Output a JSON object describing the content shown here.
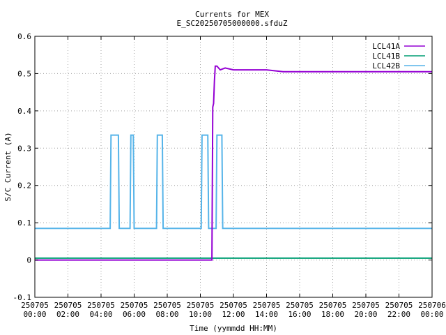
{
  "chart_data": {
    "type": "line",
    "title": "Currents for MEX",
    "subtitle": "E_SC20250705000000.sfduZ",
    "xlabel": "Time (yymmdd HH:MM)",
    "ylabel": "S/C Current (A)",
    "xlim": [
      0,
      24
    ],
    "ylim": [
      -0.1,
      0.6
    ],
    "grid": true,
    "legend_position": "top-right",
    "x_ticks": [
      0,
      2,
      4,
      6,
      8,
      10,
      12,
      14,
      16,
      18,
      20,
      22,
      24
    ],
    "x_tick_labels_top": [
      "250705",
      "250705",
      "250705",
      "250705",
      "250705",
      "250705",
      "250705",
      "250705",
      "250705",
      "250705",
      "250705",
      "250705",
      "250706"
    ],
    "x_tick_labels_bottom": [
      "00:00",
      "02:00",
      "04:00",
      "06:00",
      "08:00",
      "10:00",
      "12:00",
      "14:00",
      "16:00",
      "18:00",
      "20:00",
      "22:00",
      "00:00"
    ],
    "y_ticks": [
      -0.1,
      0,
      0.1,
      0.2,
      0.3,
      0.4,
      0.5,
      0.6
    ],
    "y_tick_labels": [
      "-0.1",
      "0",
      "0.1",
      "0.2",
      "0.3",
      "0.4",
      "0.5",
      "0.6"
    ],
    "series": [
      {
        "name": "LCL41A",
        "color": "#9400d3",
        "x": [
          0,
          10.7,
          10.75,
          10.8,
          10.85,
          10.9,
          11.0,
          11.2,
          11.5,
          12,
          13,
          14,
          15,
          16,
          17,
          18,
          19,
          20,
          21,
          22,
          23,
          24
        ],
        "y": [
          0,
          0,
          0.41,
          0.42,
          0.48,
          0.52,
          0.52,
          0.51,
          0.515,
          0.51,
          0.51,
          0.51,
          0.505,
          0.505,
          0.505,
          0.505,
          0.505,
          0.505,
          0.505,
          0.505,
          0.505,
          0.505
        ]
      },
      {
        "name": "LCL41B",
        "color": "#009e73",
        "x": [
          0,
          24
        ],
        "y": [
          0.005,
          0.005
        ]
      },
      {
        "name": "LCL42B",
        "color": "#56b4e9",
        "x": [
          0,
          4.55,
          4.6,
          5.05,
          5.1,
          5.75,
          5.8,
          5.95,
          6.0,
          7.35,
          7.4,
          7.7,
          7.75,
          10.05,
          10.1,
          10.45,
          10.5,
          10.95,
          11.0,
          11.3,
          11.35,
          24
        ],
        "y": [
          0.085,
          0.085,
          0.335,
          0.335,
          0.085,
          0.085,
          0.335,
          0.335,
          0.085,
          0.085,
          0.335,
          0.335,
          0.085,
          0.085,
          0.335,
          0.335,
          0.085,
          0.085,
          0.335,
          0.335,
          0.085,
          0.085
        ]
      }
    ]
  }
}
